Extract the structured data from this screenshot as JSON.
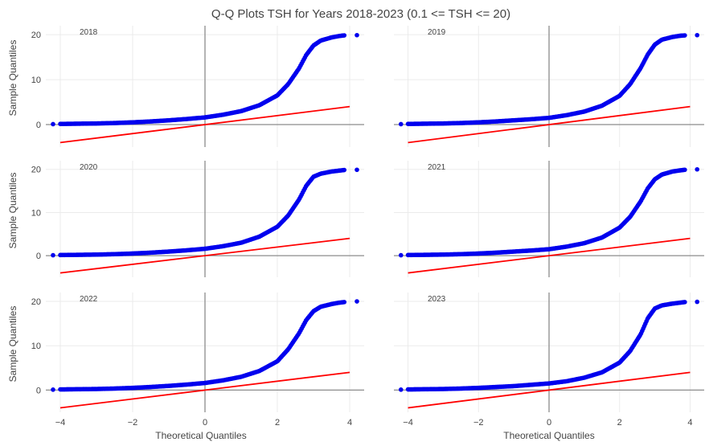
{
  "title": "Q-Q Plots TSH for Years 2018-2023 (0.1 <= TSH <= 20)",
  "xlabel": "Theoretical Quantiles",
  "ylabel": "Sample Quantiles",
  "colors": {
    "points": "#0000ee",
    "reference_line": "#ff0000",
    "zero_line": "#8c8c8c",
    "grid": "#ebebeb",
    "text": "#444444"
  },
  "chart_data": [
    {
      "type": "scatter",
      "panel": "2018",
      "xlim": [
        -4.4,
        4.4
      ],
      "ylim": [
        -5,
        22
      ],
      "xticks": [
        -4,
        -2,
        0,
        2,
        4
      ],
      "yticks": [
        0,
        10,
        20
      ],
      "grid": true,
      "legend": "none",
      "series": [
        {
          "x": [
            -4.2,
            -4.0,
            -3.5,
            -3.0,
            -2.5,
            -2.0,
            -1.5,
            -1.0,
            -0.5,
            0.0,
            0.5,
            1.0,
            1.5,
            2.0,
            2.3,
            2.6,
            2.8,
            3.0,
            3.2,
            3.5,
            3.7,
            3.85,
            4.2
          ],
          "y": [
            0.1,
            0.15,
            0.2,
            0.25,
            0.35,
            0.5,
            0.7,
            0.95,
            1.25,
            1.6,
            2.2,
            3.0,
            4.3,
            6.5,
            9.0,
            12.5,
            15.5,
            17.6,
            18.7,
            19.4,
            19.7,
            19.85,
            19.9
          ]
        },
        {
          "x": [
            -4.0,
            4.0
          ],
          "y": [
            -4.0,
            4.0
          ]
        }
      ]
    },
    {
      "type": "scatter",
      "panel": "2019",
      "xlim": [
        -4.4,
        4.4
      ],
      "ylim": [
        -5,
        22
      ],
      "xticks": [
        -4,
        -2,
        0,
        2,
        4
      ],
      "yticks": [
        0,
        10,
        20
      ],
      "grid": true,
      "legend": "none",
      "series": [
        {
          "x": [
            -4.2,
            -4.0,
            -3.5,
            -3.0,
            -2.5,
            -2.0,
            -1.5,
            -1.0,
            -0.5,
            0.0,
            0.5,
            1.0,
            1.5,
            2.0,
            2.3,
            2.6,
            2.8,
            3.0,
            3.2,
            3.5,
            3.7,
            3.85,
            4.2
          ],
          "y": [
            0.1,
            0.15,
            0.2,
            0.25,
            0.35,
            0.5,
            0.7,
            0.95,
            1.2,
            1.5,
            2.1,
            2.9,
            4.2,
            6.4,
            9.0,
            12.6,
            15.6,
            17.8,
            18.9,
            19.5,
            19.75,
            19.85,
            19.9
          ]
        },
        {
          "x": [
            -4.0,
            4.0
          ],
          "y": [
            -4.0,
            4.0
          ]
        }
      ]
    },
    {
      "type": "scatter",
      "panel": "2020",
      "xlim": [
        -4.4,
        4.4
      ],
      "ylim": [
        -5,
        22
      ],
      "xticks": [
        -4,
        -2,
        0,
        2,
        4
      ],
      "yticks": [
        0,
        10,
        20
      ],
      "grid": true,
      "legend": "none",
      "series": [
        {
          "x": [
            -4.2,
            -4.0,
            -3.5,
            -3.0,
            -2.5,
            -2.0,
            -1.5,
            -1.0,
            -0.5,
            0.0,
            0.5,
            1.0,
            1.5,
            2.0,
            2.3,
            2.6,
            2.8,
            3.0,
            3.2,
            3.5,
            3.7,
            3.85,
            4.2
          ],
          "y": [
            0.1,
            0.15,
            0.2,
            0.25,
            0.35,
            0.5,
            0.7,
            0.95,
            1.25,
            1.6,
            2.2,
            3.0,
            4.4,
            6.7,
            9.3,
            13.0,
            16.2,
            18.3,
            19.0,
            19.5,
            19.7,
            19.85,
            19.9
          ]
        },
        {
          "x": [
            -4.0,
            4.0
          ],
          "y": [
            -4.0,
            4.0
          ]
        }
      ]
    },
    {
      "type": "scatter",
      "panel": "2021",
      "xlim": [
        -4.4,
        4.4
      ],
      "ylim": [
        -5,
        22
      ],
      "xticks": [
        -4,
        -2,
        0,
        2,
        4
      ],
      "yticks": [
        0,
        10,
        20
      ],
      "grid": true,
      "legend": "none",
      "series": [
        {
          "x": [
            -4.2,
            -4.0,
            -3.5,
            -3.0,
            -2.5,
            -2.0,
            -1.5,
            -1.0,
            -0.5,
            0.0,
            0.5,
            1.0,
            1.5,
            2.0,
            2.3,
            2.6,
            2.8,
            3.0,
            3.2,
            3.5,
            3.7,
            3.85,
            4.2
          ],
          "y": [
            0.1,
            0.15,
            0.2,
            0.25,
            0.35,
            0.5,
            0.7,
            0.95,
            1.2,
            1.5,
            2.1,
            2.9,
            4.2,
            6.5,
            9.0,
            12.6,
            15.6,
            17.7,
            18.8,
            19.5,
            19.75,
            19.9,
            20.0
          ]
        },
        {
          "x": [
            -4.0,
            4.0
          ],
          "y": [
            -4.0,
            4.0
          ]
        }
      ]
    },
    {
      "type": "scatter",
      "panel": "2022",
      "xlim": [
        -4.4,
        4.4
      ],
      "ylim": [
        -5,
        22
      ],
      "xticks": [
        -4,
        -2,
        0,
        2,
        4
      ],
      "yticks": [
        0,
        10,
        20
      ],
      "grid": true,
      "legend": "none",
      "series": [
        {
          "x": [
            -4.2,
            -4.0,
            -3.5,
            -3.0,
            -2.5,
            -2.0,
            -1.5,
            -1.0,
            -0.5,
            0.0,
            0.5,
            1.0,
            1.5,
            2.0,
            2.3,
            2.6,
            2.8,
            3.0,
            3.2,
            3.5,
            3.7,
            3.85,
            4.2
          ],
          "y": [
            0.1,
            0.15,
            0.2,
            0.25,
            0.35,
            0.5,
            0.7,
            0.95,
            1.25,
            1.6,
            2.2,
            3.0,
            4.3,
            6.5,
            9.2,
            12.8,
            15.8,
            17.8,
            18.8,
            19.4,
            19.7,
            19.85,
            20.0
          ]
        },
        {
          "x": [
            -4.0,
            4.0
          ],
          "y": [
            -4.0,
            4.0
          ]
        }
      ]
    },
    {
      "type": "scatter",
      "panel": "2023",
      "xlim": [
        -4.4,
        4.4
      ],
      "ylim": [
        -5,
        22
      ],
      "xticks": [
        -4,
        -2,
        0,
        2,
        4
      ],
      "yticks": [
        0,
        10,
        20
      ],
      "grid": true,
      "legend": "none",
      "series": [
        {
          "x": [
            -4.2,
            -4.0,
            -3.5,
            -3.0,
            -2.5,
            -2.0,
            -1.5,
            -1.0,
            -0.5,
            0.0,
            0.5,
            1.0,
            1.5,
            2.0,
            2.3,
            2.6,
            2.8,
            3.0,
            3.2,
            3.5,
            3.7,
            3.85,
            4.2
          ],
          "y": [
            0.1,
            0.15,
            0.2,
            0.25,
            0.35,
            0.5,
            0.7,
            0.9,
            1.2,
            1.5,
            2.0,
            2.8,
            4.0,
            6.2,
            8.8,
            12.6,
            16.2,
            18.4,
            19.1,
            19.5,
            19.7,
            19.85,
            19.9
          ]
        },
        {
          "x": [
            -4.0,
            4.0
          ],
          "y": [
            -4.0,
            4.0
          ]
        }
      ]
    }
  ]
}
